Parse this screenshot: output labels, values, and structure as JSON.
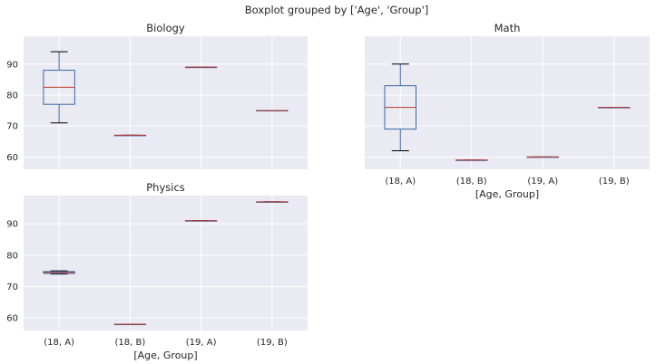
{
  "suptitle": "Boxplot grouped by ['Age', 'Group']",
  "colors": {
    "box": "#3d67a5",
    "median": "#c0392b",
    "cap": "#000000",
    "background": "#eaeaf2",
    "grid": "#ffffff"
  },
  "chart_data": [
    {
      "type": "box",
      "title": "Biology",
      "categories": [
        "(18, A)",
        "(18, B)",
        "(19, A)",
        "(19, B)"
      ],
      "xlabel": "",
      "ylabel": "",
      "ylim": [
        56,
        99
      ],
      "yticks": [
        60,
        70,
        80,
        90
      ],
      "show_xticklabels": false,
      "show_yticklabels": true,
      "boxes": [
        {
          "whislo": 71,
          "q1": 77,
          "med": 82.5,
          "q3": 88,
          "whishi": 94
        },
        {
          "whislo": 67,
          "q1": 67,
          "med": 67,
          "q3": 67,
          "whishi": 67
        },
        {
          "whislo": 89,
          "q1": 89,
          "med": 89,
          "q3": 89,
          "whishi": 89
        },
        {
          "whislo": 75,
          "q1": 75,
          "med": 75,
          "q3": 75,
          "whishi": 75
        }
      ]
    },
    {
      "type": "box",
      "title": "Math",
      "categories": [
        "(18, A)",
        "(18, B)",
        "(19, A)",
        "(19, B)"
      ],
      "xlabel": "[Age, Group]",
      "ylabel": "",
      "ylim": [
        56,
        99
      ],
      "yticks": [
        60,
        70,
        80,
        90
      ],
      "show_xticklabels": true,
      "show_yticklabels": false,
      "boxes": [
        {
          "whislo": 62,
          "q1": 69,
          "med": 76,
          "q3": 83,
          "whishi": 90
        },
        {
          "whislo": 59,
          "q1": 59,
          "med": 59,
          "q3": 59,
          "whishi": 59
        },
        {
          "whislo": 60,
          "q1": 60,
          "med": 60,
          "q3": 60,
          "whishi": 60
        },
        {
          "whislo": 76,
          "q1": 76,
          "med": 76,
          "q3": 76,
          "whishi": 76
        }
      ]
    },
    {
      "type": "box",
      "title": "Physics",
      "categories": [
        "(18, A)",
        "(18, B)",
        "(19, A)",
        "(19, B)"
      ],
      "xlabel": "[Age, Group]",
      "ylabel": "",
      "ylim": [
        56,
        99
      ],
      "yticks": [
        60,
        70,
        80,
        90
      ],
      "show_xticklabels": true,
      "show_yticklabels": true,
      "boxes": [
        {
          "whislo": 74,
          "q1": 74.2,
          "med": 74.5,
          "q3": 74.8,
          "whishi": 75
        },
        {
          "whislo": 58,
          "q1": 58,
          "med": 58,
          "q3": 58,
          "whishi": 58
        },
        {
          "whislo": 91,
          "q1": 91,
          "med": 91,
          "q3": 91,
          "whishi": 91
        },
        {
          "whislo": 97,
          "q1": 97,
          "med": 97,
          "q3": 97,
          "whishi": 97
        }
      ]
    }
  ]
}
